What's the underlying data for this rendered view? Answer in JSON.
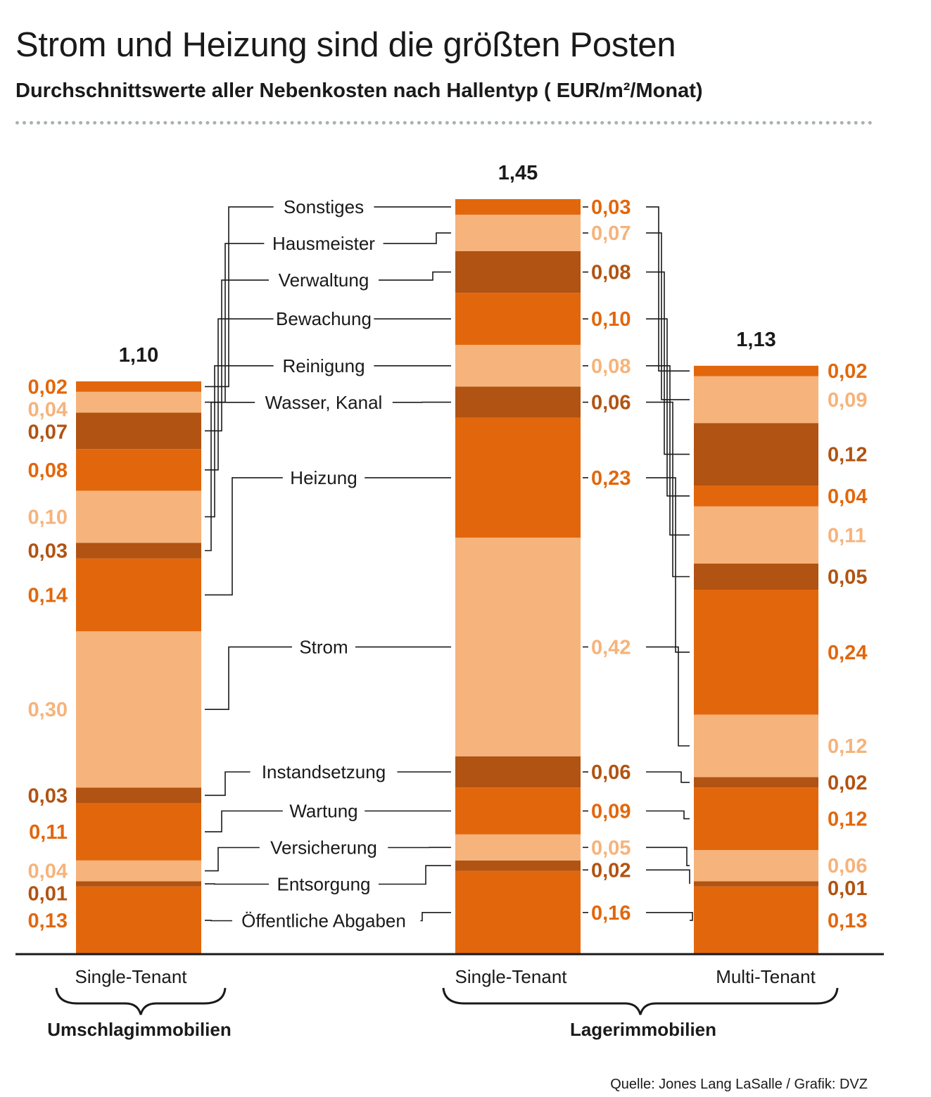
{
  "title": "Strom und Heizung sind die größten Posten",
  "subtitle": "Durchschnittswerte aller Nebenkosten nach Hallentyp ( EUR/m²/Monat)",
  "source": "Quelle: Jones Lang LaSalle / Grafik: DVZ",
  "colors": {
    "dark_orange": "#e2670c",
    "light_orange": "#f6b37b",
    "brown": "#b15312",
    "text_dark": "#1a1a1a"
  },
  "chart_data": {
    "type": "bar",
    "stacked": true,
    "categories": [
      "Single-Tenant",
      "Single-Tenant",
      "Multi-Tenant"
    ],
    "groups": [
      {
        "label": "Umschlagimmobilien",
        "categories": [
          0
        ]
      },
      {
        "label": "Lagerimmobilien",
        "categories": [
          1,
          2
        ]
      }
    ],
    "totals": [
      "1,10",
      "1,45",
      "1,13"
    ],
    "series": [
      {
        "name": "Öffentliche Abgaben",
        "values": [
          "0,13",
          "0,16",
          "0,13"
        ],
        "color": "dark_orange"
      },
      {
        "name": "Entsorgung",
        "values": [
          "0,01",
          "0,02",
          "0,01"
        ],
        "color": "brown"
      },
      {
        "name": "Versicherung",
        "values": [
          "0,04",
          "0,05",
          "0,06"
        ],
        "color": "light_orange"
      },
      {
        "name": "Wartung",
        "values": [
          "0,11",
          "0,09",
          "0,12"
        ],
        "color": "dark_orange"
      },
      {
        "name": "Instandsetzung",
        "values": [
          "0,03",
          "0,06",
          "0,02"
        ],
        "color": "brown"
      },
      {
        "name": "Strom",
        "values": [
          "0,30",
          "0,42",
          "0,12"
        ],
        "color": "light_orange"
      },
      {
        "name": "Heizung",
        "values": [
          "0,14",
          "0,23",
          "0,24"
        ],
        "color": "dark_orange"
      },
      {
        "name": "Wasser, Kanal",
        "values": [
          "0,03",
          "0,06",
          "0,05"
        ],
        "color": "brown"
      },
      {
        "name": "Reinigung",
        "values": [
          "0,10",
          "0,08",
          "0,11"
        ],
        "color": "light_orange"
      },
      {
        "name": "Bewachung",
        "values": [
          "0,08",
          "0,10",
          "0,04"
        ],
        "color": "dark_orange"
      },
      {
        "name": "Verwaltung",
        "values": [
          "0,07",
          "0,08",
          "0,12"
        ],
        "color": "brown"
      },
      {
        "name": "Hausmeister",
        "values": [
          "0,04",
          "0,07",
          "0,09"
        ],
        "color": "light_orange"
      },
      {
        "name": "Sonstiges",
        "values": [
          "0,02",
          "0,03",
          "0,02"
        ],
        "color": "dark_orange"
      }
    ]
  }
}
